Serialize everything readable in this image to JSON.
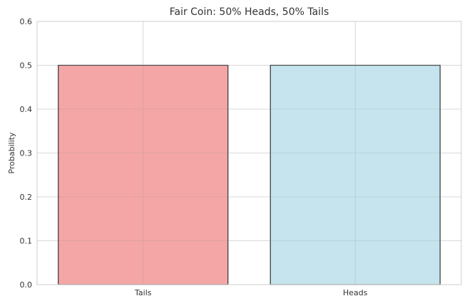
{
  "chart_data": {
    "type": "bar",
    "title": "Fair Coin: 50% Heads, 50% Tails",
    "xlabel": "",
    "ylabel": "Probability",
    "categories": [
      "Tails",
      "Heads"
    ],
    "values": [
      0.5,
      0.5
    ],
    "colors": [
      "#f08080",
      "#add8e6"
    ],
    "ylim": [
      0,
      0.6
    ],
    "yticks": [
      "0.0",
      "0.1",
      "0.2",
      "0.3",
      "0.4",
      "0.5",
      "0.6"
    ],
    "grid": true,
    "legend": "none"
  }
}
